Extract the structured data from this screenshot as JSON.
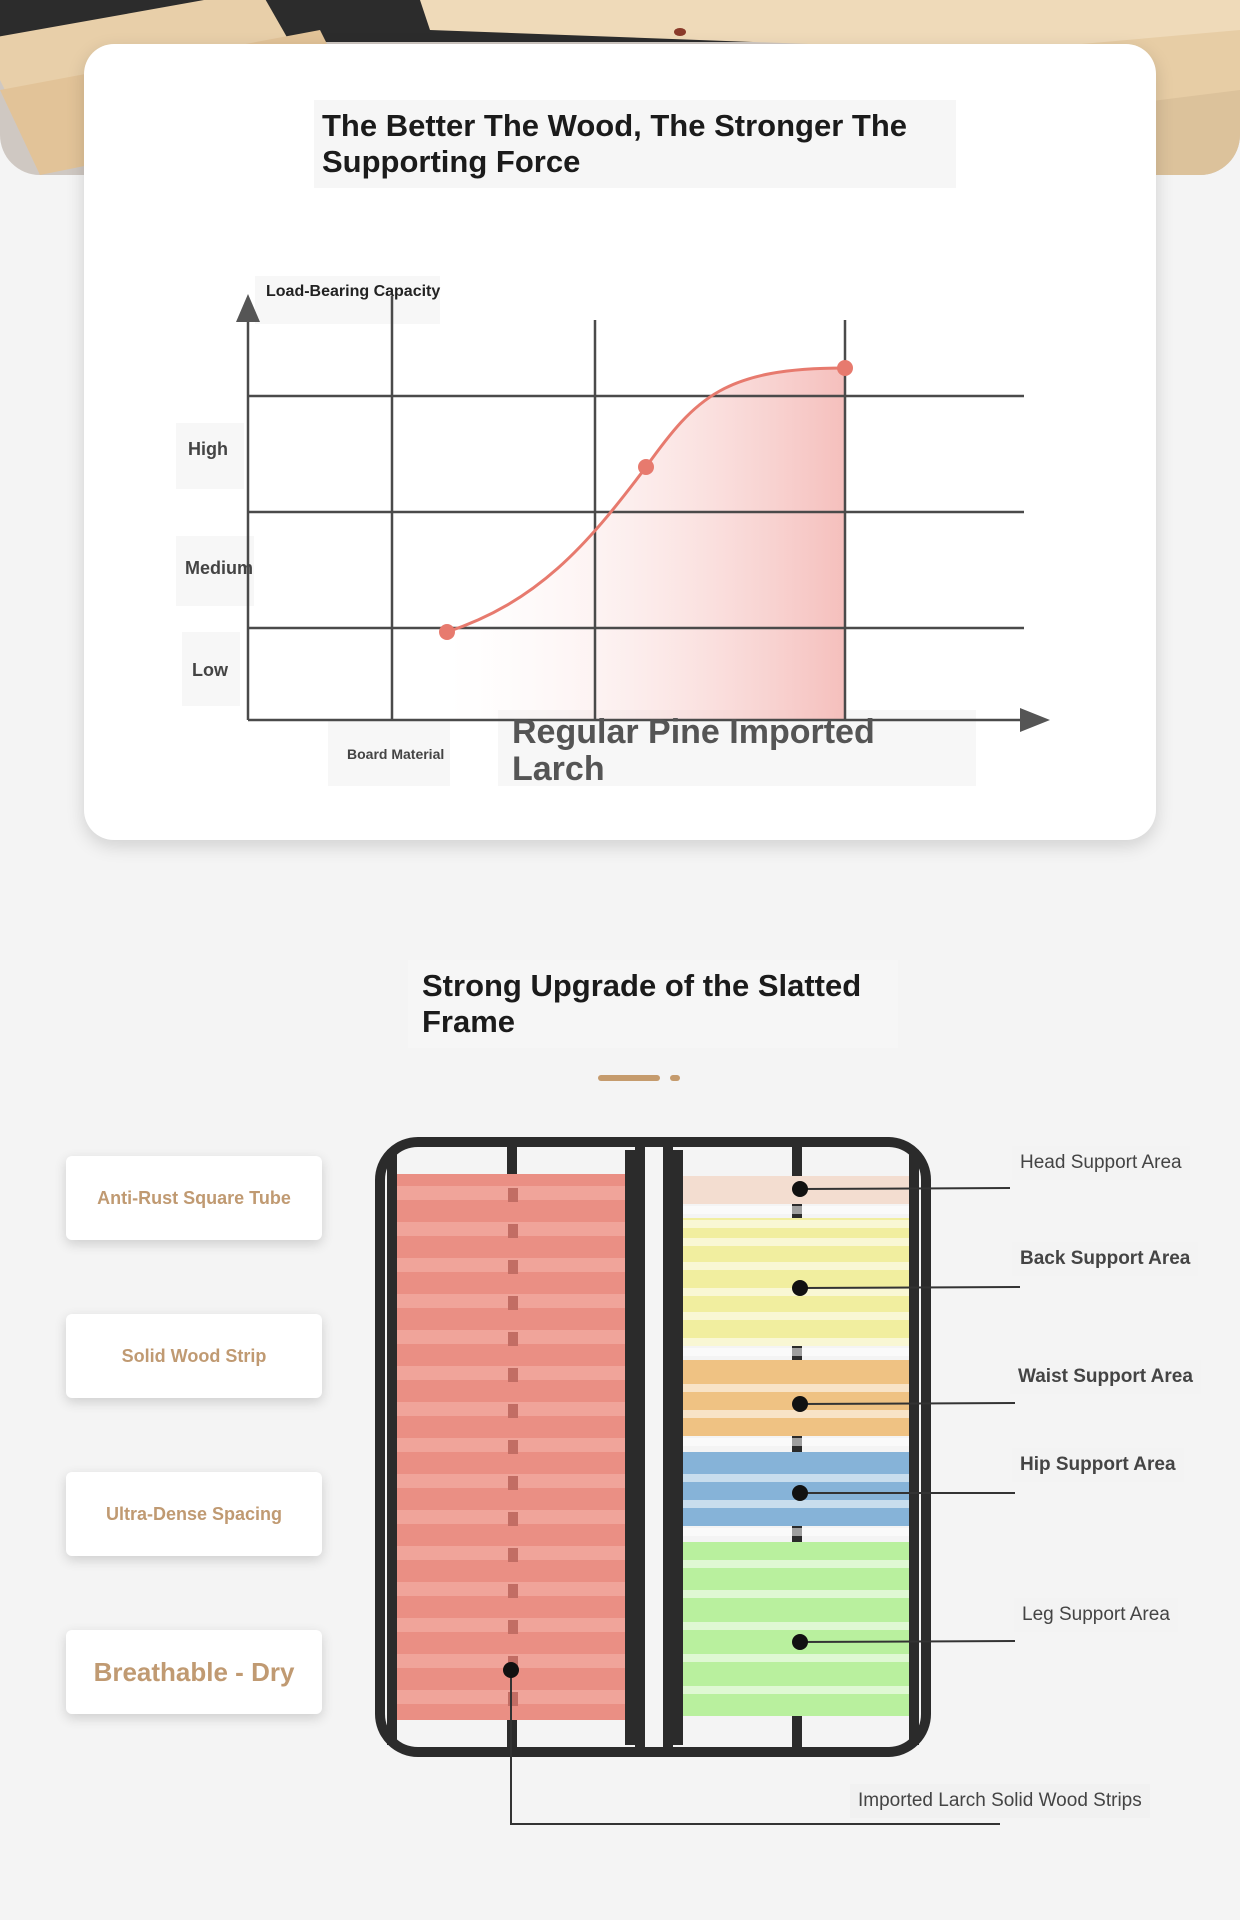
{
  "chart": {
    "title": "The Better The Wood, The Stronger The Supporting Force",
    "y_axis_label": "Load-Bearing Capacity",
    "y_levels": [
      "High",
      "Medium",
      "Low"
    ],
    "x_axis_label": "Board Material",
    "x_categories_text": "Regular Pine Imported Larch",
    "colors": {
      "curve": "#e77a6e",
      "fill": "#f6c9c7",
      "axis": "#555555"
    }
  },
  "chart_data": {
    "type": "area",
    "title": "The Better The Wood, The Stronger The Supporting Force",
    "ylabel": "Load-Bearing Capacity",
    "xlabel": "Board Material",
    "y_levels": [
      "Low",
      "Medium",
      "High"
    ],
    "y_levels_position": {
      "Low": 1,
      "Medium": 2,
      "High": 3
    },
    "x_gridlines": 3,
    "points": [
      {
        "x": 1,
        "y": 0.8
      },
      {
        "x": 2,
        "y": 2.3
      },
      {
        "x": 3,
        "y": 3.2
      }
    ],
    "xlim": [
      0,
      3.8
    ],
    "ylim": [
      0,
      3.8
    ],
    "grid": true
  },
  "frame_section": {
    "title": "Strong Upgrade of the Slatted Frame",
    "features": [
      "Anti-Rust Square Tube",
      "Solid Wood Strip",
      "Ultra-Dense Spacing",
      "Breathable - Dry"
    ],
    "areas": [
      {
        "label": "Head Support Area",
        "color": "#f3ddd0"
      },
      {
        "label": "Back Support Area",
        "color": "#f1ee9f"
      },
      {
        "label": "Waist Support Area",
        "color": "#efc283"
      },
      {
        "label": "Hip Support Area",
        "color": "#86b3d8"
      },
      {
        "label": "Leg Support Area",
        "color": "#b9f09e"
      }
    ],
    "left_zone_color": "#ea8f84",
    "bottom_label": "Imported Larch Solid Wood Strips"
  }
}
